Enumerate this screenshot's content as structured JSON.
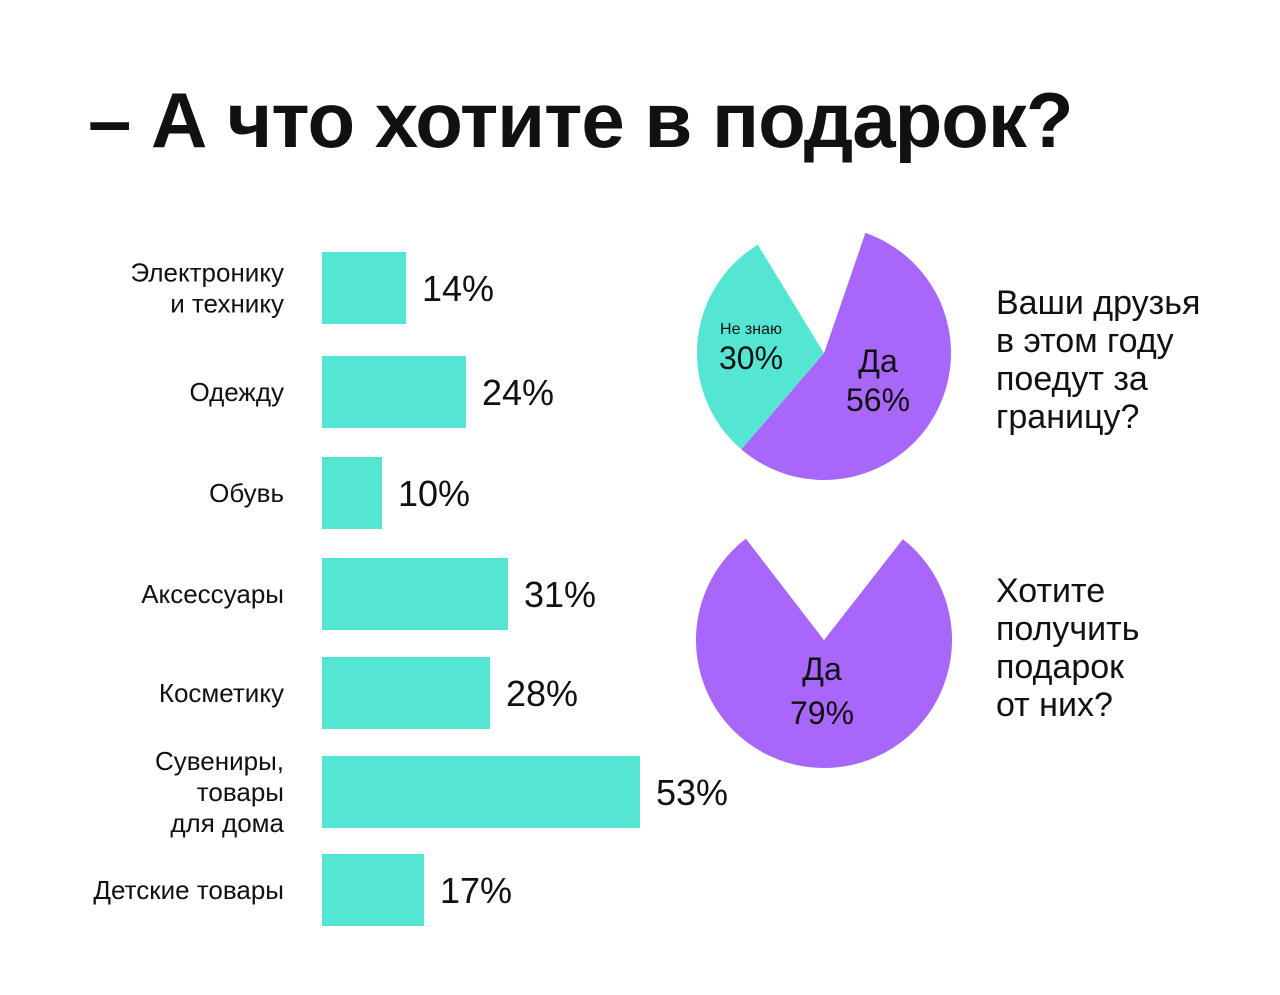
{
  "title": "– А что хотите в подарок?",
  "colors": {
    "bar": "#54e6d3",
    "purple": "#a866fb",
    "teal": "#54e6d3",
    "white": "#ffffff"
  },
  "chart_data": [
    {
      "type": "bar",
      "orientation": "horizontal",
      "categories": [
        [
          "Электронику",
          "и технику"
        ],
        [
          "Одежду"
        ],
        [
          "Обувь"
        ],
        [
          "Аксессуары"
        ],
        [
          "Косметику"
        ],
        [
          "Сувениры,",
          "товары",
          "для дома"
        ],
        [
          "Детские товары"
        ]
      ],
      "values": [
        14,
        24,
        10,
        31,
        28,
        53,
        17
      ],
      "value_labels": [
        "14%",
        "24%",
        "10%",
        "31%",
        "28%",
        "53%",
        "17%"
      ],
      "unit": "%"
    },
    {
      "type": "pie",
      "title_lines": [
        "Ваши друзья",
        "в этом году",
        "поедут за",
        "границу?"
      ],
      "slices": [
        {
          "label": "Да",
          "value": 56,
          "value_label": "56%",
          "color": "#a866fb"
        },
        {
          "label": "Не знаю",
          "value": 30,
          "value_label": "30%",
          "color": "#54e6d3"
        },
        {
          "label": "",
          "value": 14,
          "value_label": "",
          "color": "#ffffff"
        }
      ]
    },
    {
      "type": "pie",
      "title_lines": [
        "Хотите",
        "получить",
        "подарок",
        "от них?"
      ],
      "slices": [
        {
          "label": "Да",
          "value": 79,
          "value_label": "79%",
          "color": "#a866fb"
        },
        {
          "label": "",
          "value": 21,
          "value_label": "",
          "color": "#ffffff"
        }
      ]
    }
  ]
}
